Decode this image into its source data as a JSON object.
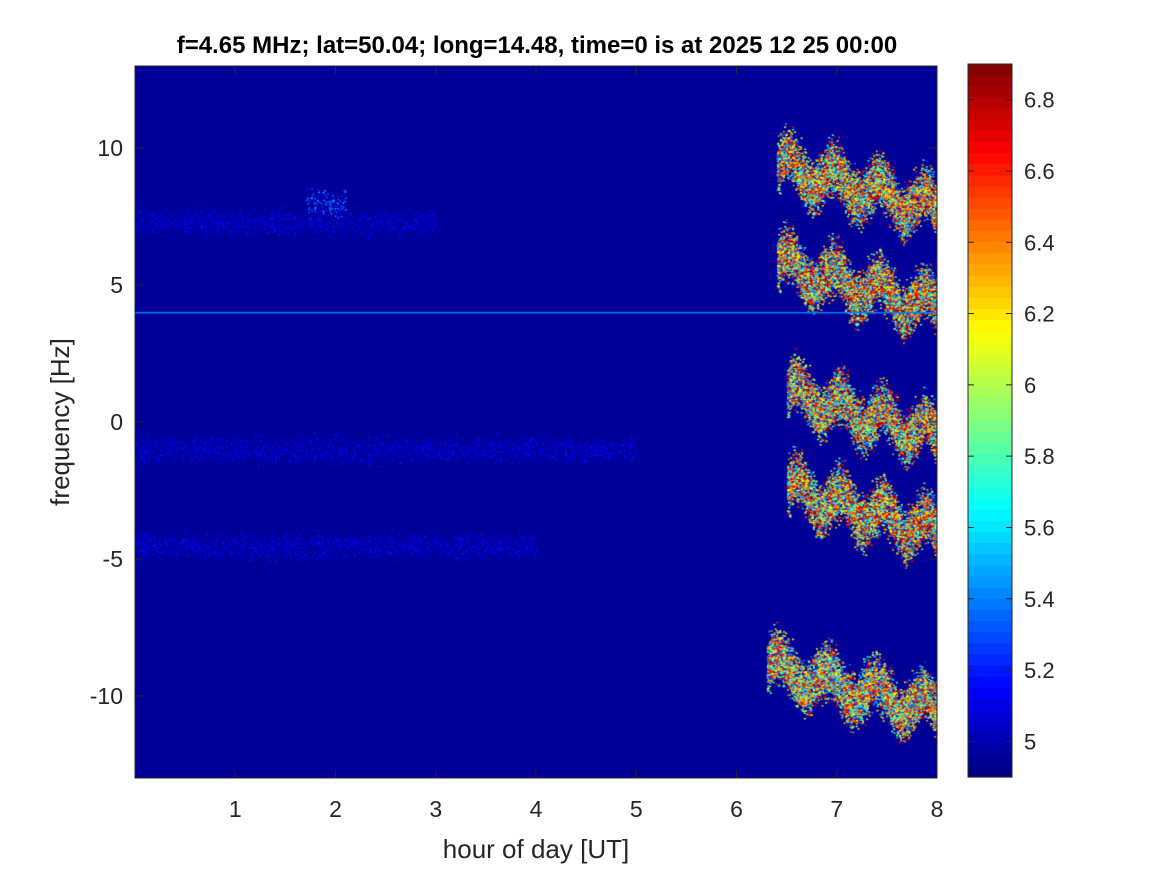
{
  "chart_data": {
    "type": "heatmap",
    "title": "f=4.65 MHz;  lat=50.04; long=14.48, time=0 is at 2025 12 25 00:00",
    "xlabel": "hour of day [UT]",
    "ylabel": "frequency [Hz]",
    "xlim": [
      0,
      8
    ],
    "ylim": [
      -13,
      13
    ],
    "x_ticks": [
      1,
      2,
      3,
      4,
      5,
      6,
      7,
      8
    ],
    "x_tick_labels": [
      "1",
      "2",
      "3",
      "4",
      "5",
      "6",
      "7",
      "8"
    ],
    "y_ticks": [
      10,
      5,
      0,
      -5,
      -10
    ],
    "y_tick_labels": [
      "10",
      "5",
      "0",
      "-5",
      "-10"
    ],
    "colormap": "jet",
    "color_range": [
      4.9,
      6.9
    ],
    "colorbar_ticks": [
      6.8,
      6.6,
      6.4,
      6.2,
      6,
      5.8,
      5.6,
      5.4,
      5.2,
      5
    ],
    "colorbar_tick_labels": [
      "6.8",
      "6.6",
      "6.4",
      "6.2",
      "6",
      "5.8",
      "5.6",
      "5.4",
      "5.2",
      "5"
    ],
    "background_value": 4.95,
    "steady_line": {
      "frequency": 4.0,
      "x_range": [
        0,
        8
      ],
      "value": 5.4
    },
    "features": [
      {
        "x_range": [
          1.7,
          2.1
        ],
        "center_frequency": 8.0,
        "peak_value": 5.6
      },
      {
        "x_range": [
          0,
          3.0
        ],
        "center_frequency": 7.3,
        "peak_value": 5.2
      },
      {
        "x_range": [
          0,
          5.0
        ],
        "center_frequency": -1.0,
        "peak_value": 5.2
      },
      {
        "x_range": [
          0,
          4.0
        ],
        "center_frequency": -4.5,
        "peak_value": 5.2
      },
      {
        "x_range": [
          6.4,
          8.0
        ],
        "center_frequency": 7.8,
        "peak_value": 6.9
      },
      {
        "x_range": [
          6.4,
          8.0
        ],
        "center_frequency": 4.2,
        "peak_value": 6.9
      },
      {
        "x_range": [
          6.5,
          8.0
        ],
        "center_frequency": -0.5,
        "peak_value": 6.9
      },
      {
        "x_range": [
          6.5,
          8.0
        ],
        "center_frequency": -4.0,
        "peak_value": 6.9
      },
      {
        "x_range": [
          6.3,
          8.0
        ],
        "center_frequency": -10.5,
        "peak_value": 6.8
      }
    ]
  }
}
